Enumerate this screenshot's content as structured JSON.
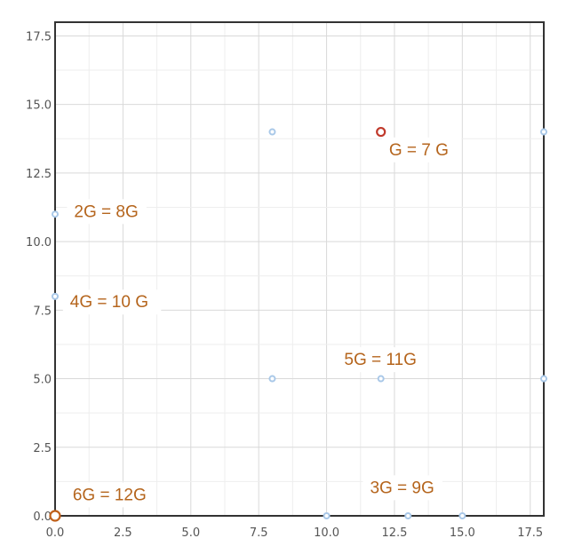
{
  "chart_data": {
    "type": "scatter",
    "title": "",
    "xlabel": "",
    "ylabel": "",
    "xlim": [
      0,
      18
    ],
    "ylim": [
      0,
      18
    ],
    "x_ticks": [
      "0.0",
      "2.5",
      "5.0",
      "7.5",
      "10.0",
      "12.5",
      "15.0",
      "17.5"
    ],
    "y_ticks": [
      "0.0",
      "2.5",
      "5.0",
      "7.5",
      "10.0",
      "12.5",
      "15.0",
      "17.5"
    ],
    "grid": true,
    "points": [
      {
        "x": 8,
        "y": 14,
        "style": "light"
      },
      {
        "x": 12,
        "y": 14,
        "style": "highlight-red"
      },
      {
        "x": 18,
        "y": 14,
        "style": "light"
      },
      {
        "x": 0,
        "y": 11,
        "style": "light"
      },
      {
        "x": 0,
        "y": 8,
        "style": "light"
      },
      {
        "x": 8,
        "y": 5,
        "style": "light"
      },
      {
        "x": 12,
        "y": 5,
        "style": "light"
      },
      {
        "x": 18,
        "y": 5,
        "style": "light"
      },
      {
        "x": 10,
        "y": 0,
        "style": "light"
      },
      {
        "x": 13,
        "y": 0,
        "style": "light"
      },
      {
        "x": 15,
        "y": 0,
        "style": "light"
      },
      {
        "x": 0,
        "y": 0,
        "style": "highlight-orange"
      }
    ],
    "annotations": [
      {
        "text": "G = 7 G",
        "x": 12.3,
        "y": 13.15
      },
      {
        "text": "2G = 8G",
        "x": 0.7,
        "y": 10.9
      },
      {
        "text": "4G = 10 G",
        "x": 0.55,
        "y": 7.6
      },
      {
        "text": "5G = 11G",
        "x": 10.65,
        "y": 5.5
      },
      {
        "text": "3G = 9G",
        "x": 11.6,
        "y": 0.83
      },
      {
        "text": "6G = 12G",
        "x": 0.65,
        "y": 0.57
      }
    ],
    "colors": {
      "point_light": "#a9c8e8",
      "point_red": "#c0392b",
      "point_orange": "#c0601a",
      "annotation": "#b5651d",
      "grid": "#d9d9d9",
      "frame": "#333333"
    }
  }
}
